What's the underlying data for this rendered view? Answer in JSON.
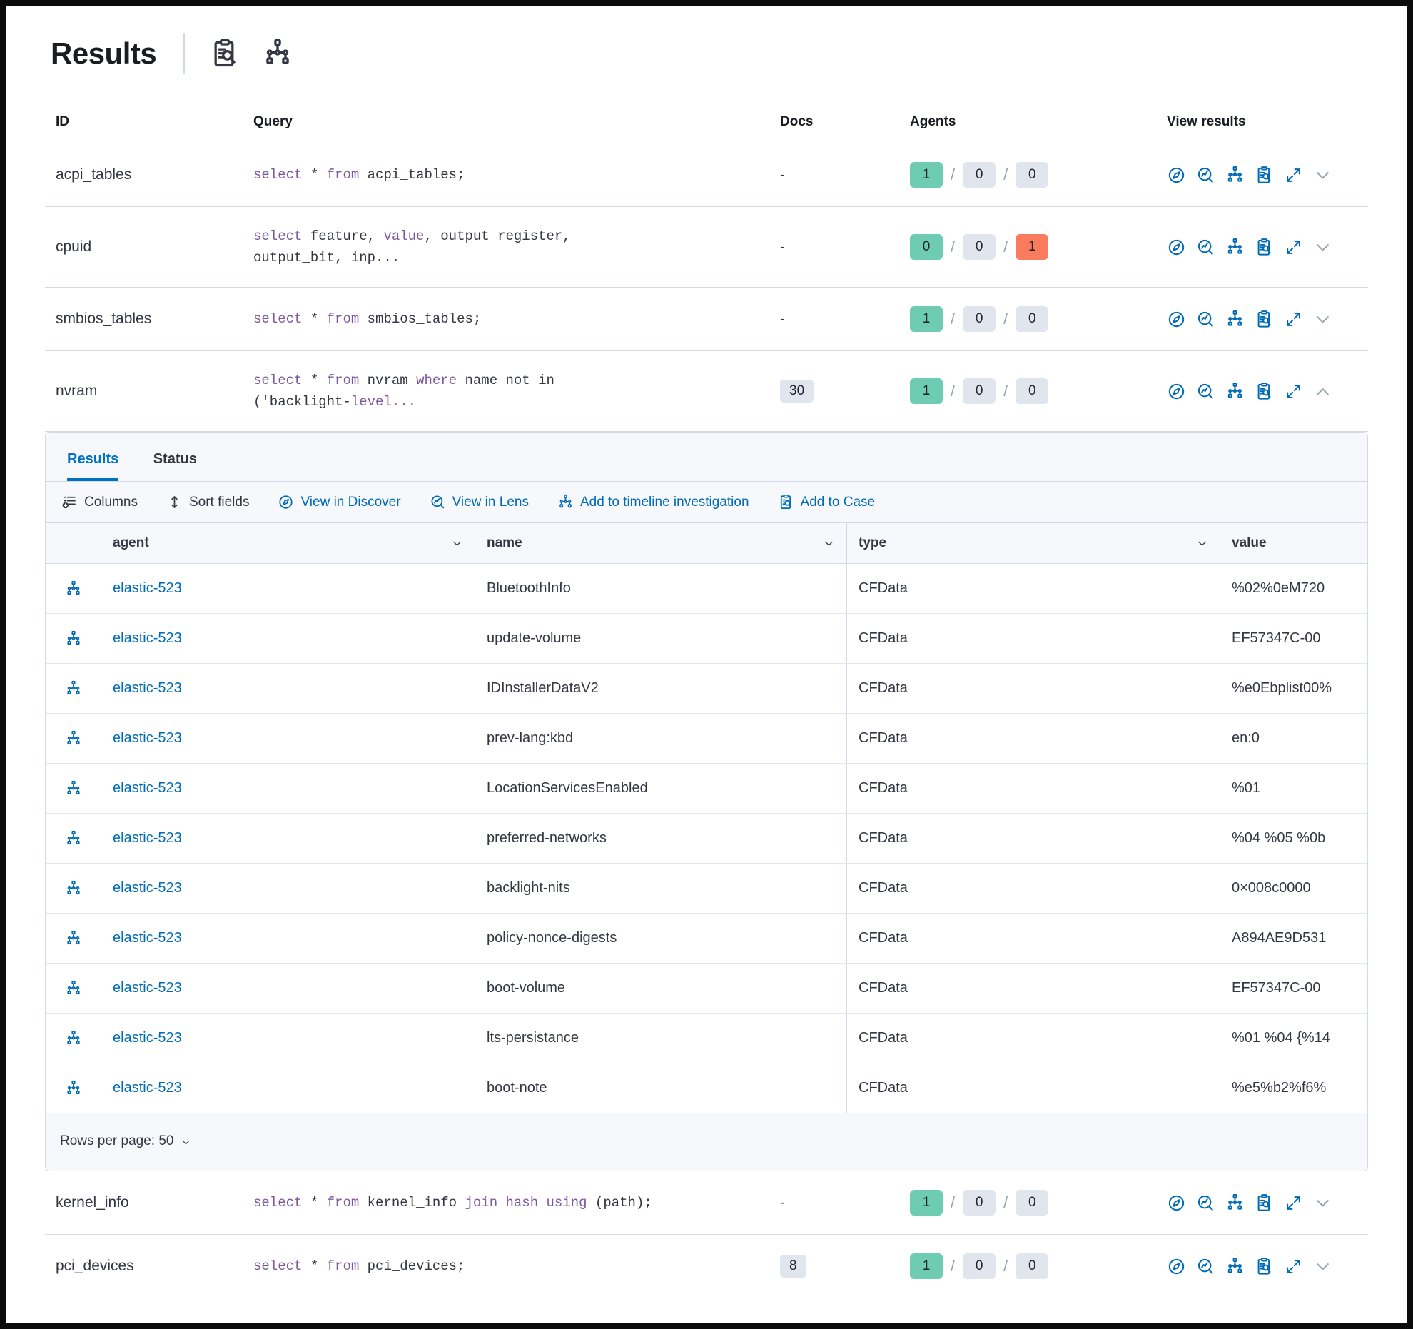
{
  "header": {
    "title": "Results"
  },
  "colors": {
    "primary_blue": "#006BB4",
    "tab_blue": "#0071C2",
    "success_green": "#6DCCB1",
    "danger_red": "#FB7B5E",
    "badge_gray": "#E0E5EE",
    "keyword_purple": "#7D5A9E"
  },
  "table": {
    "columns": [
      "ID",
      "Query",
      "Docs",
      "Agents",
      "View results"
    ],
    "view_results_icons": [
      "discover",
      "lens",
      "node-tree",
      "inspect",
      "expand"
    ],
    "rows": [
      {
        "id": "acpi_tables",
        "query_lines": [
          [
            {
              "t": "select",
              "k": true
            },
            {
              "t": " * "
            },
            {
              "t": "from",
              "k": true
            },
            {
              "t": " acpi_tables;"
            }
          ]
        ],
        "docs": "-",
        "docs_is_badge": false,
        "agents": [
          "1",
          "0",
          "0"
        ],
        "agents_colors": [
          "green",
          "gray",
          "gray"
        ],
        "expanded": false
      },
      {
        "id": "cpuid",
        "query_lines": [
          [
            {
              "t": "select",
              "k": true
            },
            {
              "t": " feature, "
            },
            {
              "t": "value",
              "k": true
            },
            {
              "t": ", output_register,"
            }
          ],
          [
            {
              "t": "output_bit, inp..."
            }
          ]
        ],
        "docs": "-",
        "docs_is_badge": false,
        "agents": [
          "0",
          "0",
          "1"
        ],
        "agents_colors": [
          "green",
          "gray",
          "red"
        ],
        "expanded": false
      },
      {
        "id": "smbios_tables",
        "query_lines": [
          [
            {
              "t": "select",
              "k": true
            },
            {
              "t": " * "
            },
            {
              "t": "from",
              "k": true
            },
            {
              "t": " smbios_tables;"
            }
          ]
        ],
        "docs": "-",
        "docs_is_badge": false,
        "agents": [
          "1",
          "0",
          "0"
        ],
        "agents_colors": [
          "green",
          "gray",
          "gray"
        ],
        "expanded": false
      },
      {
        "id": "nvram",
        "query_lines": [
          [
            {
              "t": "select",
              "k": true
            },
            {
              "t": " * "
            },
            {
              "t": "from",
              "k": true
            },
            {
              "t": " nvram "
            },
            {
              "t": "where",
              "k": true
            },
            {
              "t": " name not in"
            }
          ],
          [
            {
              "t": "('backlight-"
            },
            {
              "t": "level...",
              "k": true
            }
          ]
        ],
        "docs": "30",
        "docs_is_badge": true,
        "agents": [
          "1",
          "0",
          "0"
        ],
        "agents_colors": [
          "green",
          "gray",
          "gray"
        ],
        "expanded": true
      },
      {
        "id": "kernel_info",
        "query_lines": [
          [
            {
              "t": "select",
              "k": true
            },
            {
              "t": " * "
            },
            {
              "t": "from",
              "k": true
            },
            {
              "t": " kernel_info "
            },
            {
              "t": "join",
              "k": true
            },
            {
              "t": " "
            },
            {
              "t": "hash",
              "k": true
            },
            {
              "t": " "
            },
            {
              "t": "using",
              "k": true
            },
            {
              "t": " (path);"
            }
          ]
        ],
        "docs": "-",
        "docs_is_badge": false,
        "agents": [
          "1",
          "0",
          "0"
        ],
        "agents_colors": [
          "green",
          "gray",
          "gray"
        ],
        "expanded": false
      },
      {
        "id": "pci_devices",
        "query_lines": [
          [
            {
              "t": "select",
              "k": true
            },
            {
              "t": " * "
            },
            {
              "t": "from",
              "k": true
            },
            {
              "t": " pci_devices;"
            }
          ]
        ],
        "docs": "8",
        "docs_is_badge": true,
        "agents": [
          "1",
          "0",
          "0"
        ],
        "agents_colors": [
          "green",
          "gray",
          "gray"
        ],
        "expanded": false
      }
    ]
  },
  "panel": {
    "tabs": [
      {
        "label": "Results",
        "active": true
      },
      {
        "label": "Status",
        "active": false
      }
    ],
    "toolbar": [
      {
        "label": "Columns",
        "icon": "columns",
        "blue": false
      },
      {
        "label": "Sort fields",
        "icon": "sort",
        "blue": false
      },
      {
        "label": "View in Discover",
        "icon": "discover",
        "blue": true
      },
      {
        "label": "View in Lens",
        "icon": "lens",
        "blue": true
      },
      {
        "label": "Add to timeline investigation",
        "icon": "node-tree",
        "blue": true
      },
      {
        "label": "Add to Case",
        "icon": "inspect",
        "blue": true
      }
    ],
    "grid": {
      "columns": [
        "agent",
        "name",
        "type",
        "value"
      ],
      "rows": [
        {
          "agent": "elastic-523",
          "name": "BluetoothInfo",
          "type": "CFData",
          "value": "%02%0eM720"
        },
        {
          "agent": "elastic-523",
          "name": "update-volume",
          "type": "CFData",
          "value": "EF57347C-00"
        },
        {
          "agent": "elastic-523",
          "name": "IDInstallerDataV2",
          "type": "CFData",
          "value": "%e0Ebplist00%"
        },
        {
          "agent": "elastic-523",
          "name": "prev-lang:kbd",
          "type": "CFData",
          "value": "en:0"
        },
        {
          "agent": "elastic-523",
          "name": "LocationServicesEnabled",
          "type": "CFData",
          "value": "%01"
        },
        {
          "agent": "elastic-523",
          "name": "preferred-networks",
          "type": "CFData",
          "value": "%04 %05 %0b"
        },
        {
          "agent": "elastic-523",
          "name": "backlight-nits",
          "type": "CFData",
          "value": "0×008c0000"
        },
        {
          "agent": "elastic-523",
          "name": "policy-nonce-digests",
          "type": "CFData",
          "value": "A894AE9D531"
        },
        {
          "agent": "elastic-523",
          "name": "boot-volume",
          "type": "CFData",
          "value": "EF57347C-00"
        },
        {
          "agent": "elastic-523",
          "name": "lts-persistance",
          "type": "CFData",
          "value": "%01 %04 {%14"
        },
        {
          "agent": "elastic-523",
          "name": "boot-note",
          "type": "CFData",
          "value": "%e5%b2%f6%"
        }
      ]
    },
    "footer": {
      "rows_per_page_label": "Rows per page: 50"
    }
  }
}
